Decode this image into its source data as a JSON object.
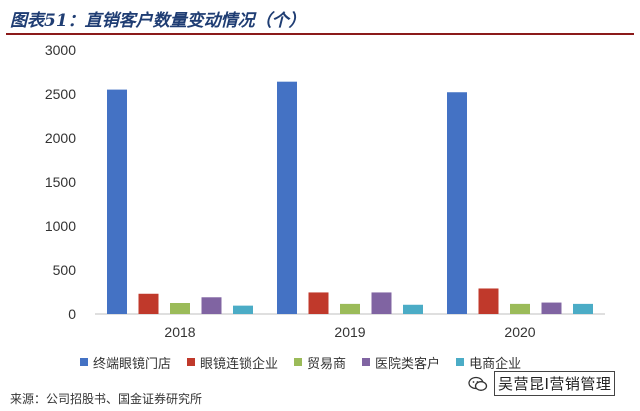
{
  "header": {
    "title": "图表51：直销客户数量变动情况（个）"
  },
  "legend": [
    {
      "label": "终端眼镜门店",
      "color": "#4472c4"
    },
    {
      "label": "眼镜连锁企业",
      "color": "#c0392b"
    },
    {
      "label": "贸易商",
      "color": "#9bbb59"
    },
    {
      "label": "医院类客户",
      "color": "#8064a2"
    },
    {
      "label": "电商企业",
      "color": "#4bacc6"
    }
  ],
  "source": "来源：公司招股书、国金证券研究所",
  "watermark": {
    "text": "吴营昆I营销管理",
    "icon": "wechat-icon"
  },
  "chart_data": {
    "type": "bar",
    "title": "图表51：直销客户数量变动情况（个）",
    "categories": [
      "2018",
      "2019",
      "2020"
    ],
    "ylim": [
      0,
      3000
    ],
    "yticks": [
      "0",
      "500",
      "1000",
      "1500",
      "2000",
      "2500",
      "3000"
    ],
    "grid": false,
    "legend_position": "bottom",
    "series": [
      {
        "name": "终端眼镜门店",
        "color": "#4472c4",
        "values": [
          2550,
          2640,
          2520
        ]
      },
      {
        "name": "眼镜连锁企业",
        "color": "#c0392b",
        "values": [
          230,
          245,
          290
        ]
      },
      {
        "name": "贸易商",
        "color": "#9bbb59",
        "values": [
          125,
          115,
          115
        ]
      },
      {
        "name": "医院类客户",
        "color": "#8064a2",
        "values": [
          190,
          245,
          130
        ]
      },
      {
        "name": "电商企业",
        "color": "#4bacc6",
        "values": [
          95,
          105,
          115
        ]
      }
    ]
  }
}
